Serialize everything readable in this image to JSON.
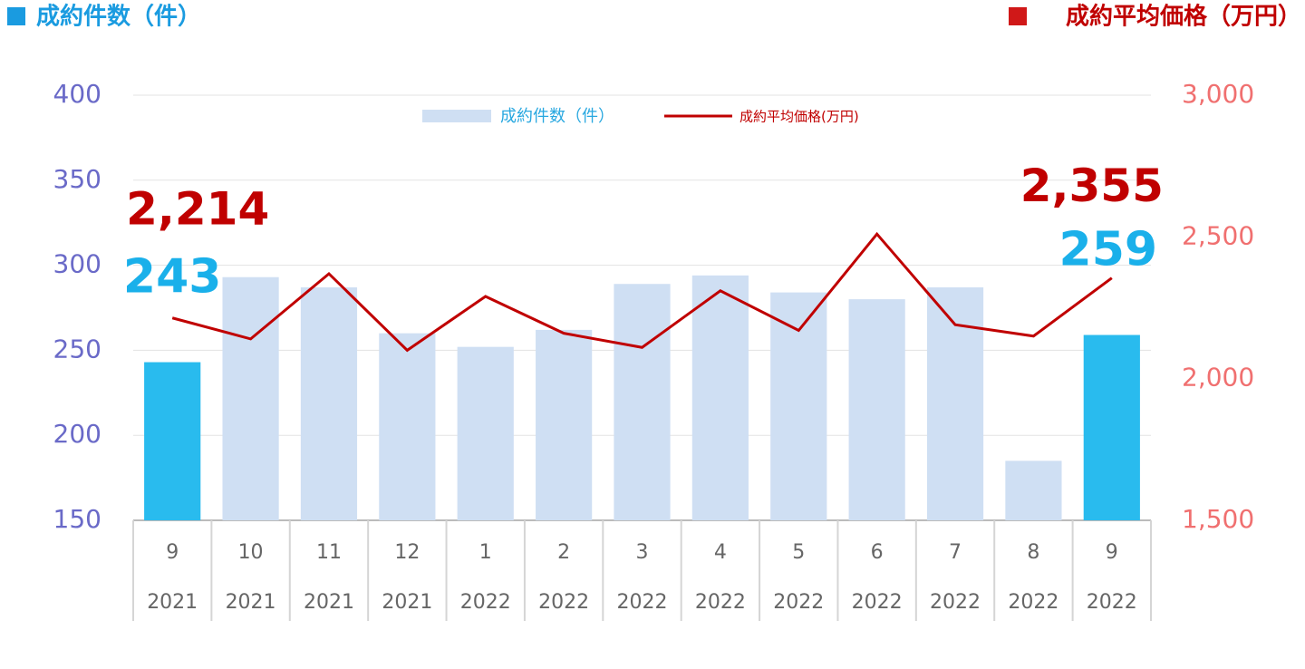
{
  "chart_data": {
    "type": "combo",
    "y_label": "成約件数（件）",
    "y2_label": "成約平均価格（万円）",
    "categories": [
      [
        "9",
        "2021"
      ],
      [
        "10",
        "2021"
      ],
      [
        "11",
        "2021"
      ],
      [
        "12",
        "2021"
      ],
      [
        "1",
        "2022"
      ],
      [
        "2",
        "2022"
      ],
      [
        "3",
        "2022"
      ],
      [
        "4",
        "2022"
      ],
      [
        "5",
        "2022"
      ],
      [
        "6",
        "2022"
      ],
      [
        "7",
        "2022"
      ],
      [
        "8",
        "2022"
      ],
      [
        "9",
        "2022"
      ]
    ],
    "series": [
      {
        "name": "成約件数（件）",
        "type": "bar",
        "color": "#cfdff3",
        "colors": [
          "#29bbee",
          "#cfdff3",
          "#cfdff3",
          "#cfdff3",
          "#cfdff3",
          "#cfdff3",
          "#cfdff3",
          "#cfdff3",
          "#cfdff3",
          "#cfdff3",
          "#cfdff3",
          "#cfdff3",
          "#29bbee"
        ],
        "values": [
          243,
          293,
          287,
          260,
          252,
          262,
          289,
          294,
          284,
          280,
          287,
          185,
          259
        ],
        "value_labels": [
          "243",
          null,
          null,
          null,
          null,
          null,
          null,
          null,
          null,
          null,
          null,
          null,
          "259"
        ]
      },
      {
        "name": "成約平均価格(万円)",
        "type": "line",
        "axis": "y2",
        "color": "#c00000",
        "values": [
          2214,
          2140,
          2370,
          2100,
          2290,
          2160,
          2110,
          2310,
          2170,
          2510,
          2190,
          2150,
          2355
        ],
        "value_labels": [
          "2,214",
          null,
          null,
          null,
          null,
          null,
          null,
          null,
          null,
          null,
          null,
          null,
          "2,355"
        ]
      }
    ],
    "ylim": [
      150,
      400
    ],
    "yticks": [
      150,
      200,
      250,
      300,
      350,
      400
    ],
    "y2lim": [
      1500,
      3000
    ],
    "y2ticks": [
      {
        "value": 1500,
        "label": "1,500"
      },
      {
        "value": 2000,
        "label": "2,000"
      },
      {
        "value": 2500,
        "label": "2,500"
      },
      {
        "value": 3000,
        "label": "3,000"
      }
    ],
    "grid": true
  }
}
